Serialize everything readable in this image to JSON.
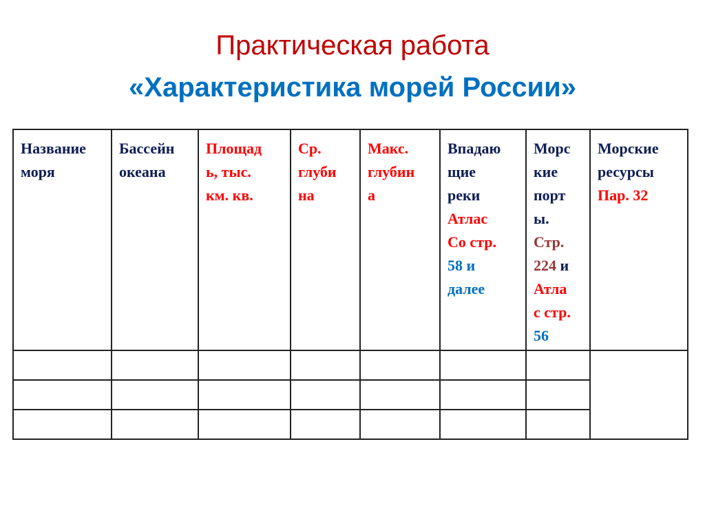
{
  "title": {
    "line1": "Практическая работа",
    "line2": "«Характеристика морей России»"
  },
  "colors": {
    "navy": "#0f1d54",
    "red": "#ff0000",
    "blue": "#0070c0",
    "brown": "#953735",
    "title_red": "#c00000",
    "title_blue": "#0070c0"
  },
  "table": {
    "headers": [
      {
        "lines": [
          [
            {
              "t": "Название",
              "c": "navy"
            }
          ],
          [
            {
              "t": "моря",
              "c": "navy"
            }
          ]
        ]
      },
      {
        "lines": [
          [
            {
              "t": "Бассейн",
              "c": "navy"
            }
          ],
          [
            {
              "t": "океана",
              "c": "navy"
            }
          ]
        ]
      },
      {
        "lines": [
          [
            {
              "t": "Площад",
              "c": "red"
            }
          ],
          [
            {
              "t": "ь, тыс.",
              "c": "red"
            }
          ],
          [
            {
              "t": "км. кв.",
              "c": "red"
            }
          ]
        ]
      },
      {
        "lines": [
          [
            {
              "t": "Ср.",
              "c": "red"
            }
          ],
          [
            {
              "t": "глуби",
              "c": "red"
            }
          ],
          [
            {
              "t": "на",
              "c": "red"
            }
          ]
        ]
      },
      {
        "lines": [
          [
            {
              "t": "Макс.",
              "c": "red"
            }
          ],
          [
            {
              "t": "глубин",
              "c": "red"
            }
          ],
          [
            {
              "t": "а",
              "c": "red"
            }
          ]
        ]
      },
      {
        "lines": [
          [
            {
              "t": "Впадаю",
              "c": "navy"
            }
          ],
          [
            {
              "t": "щие",
              "c": "navy"
            }
          ],
          [
            {
              "t": "реки",
              "c": "navy"
            }
          ],
          [
            {
              "t": "Атлас",
              "c": "red"
            }
          ],
          [
            {
              "t": "Со стр.",
              "c": "red"
            }
          ],
          [
            {
              "t": "58 и",
              "c": "blue"
            }
          ],
          [
            {
              "t": "далее",
              "c": "blue"
            }
          ]
        ]
      },
      {
        "lines": [
          [
            {
              "t": "Морс",
              "c": "navy"
            }
          ],
          [
            {
              "t": "кие",
              "c": "navy"
            }
          ],
          [
            {
              "t": "порт",
              "c": "navy"
            }
          ],
          [
            {
              "t": "ы.",
              "c": "navy"
            }
          ],
          [
            {
              "t": "Стр.",
              "c": "brown"
            }
          ],
          [
            {
              "t": "224",
              "c": "brown"
            },
            {
              "t": " и",
              "c": "navy"
            }
          ],
          [
            {
              "t": "Атла",
              "c": "red"
            }
          ],
          [
            {
              "t": "с стр.",
              "c": "red"
            }
          ],
          [
            {
              "t": "56",
              "c": "blue"
            }
          ]
        ]
      },
      {
        "lines": [
          [
            {
              "t": "Морские",
              "c": "navy"
            }
          ],
          [
            {
              "t": "ресурсы",
              "c": "navy"
            }
          ],
          [
            {
              "t": "Пар. 32",
              "c": "red"
            }
          ]
        ]
      }
    ],
    "empty_rows": 3
  }
}
